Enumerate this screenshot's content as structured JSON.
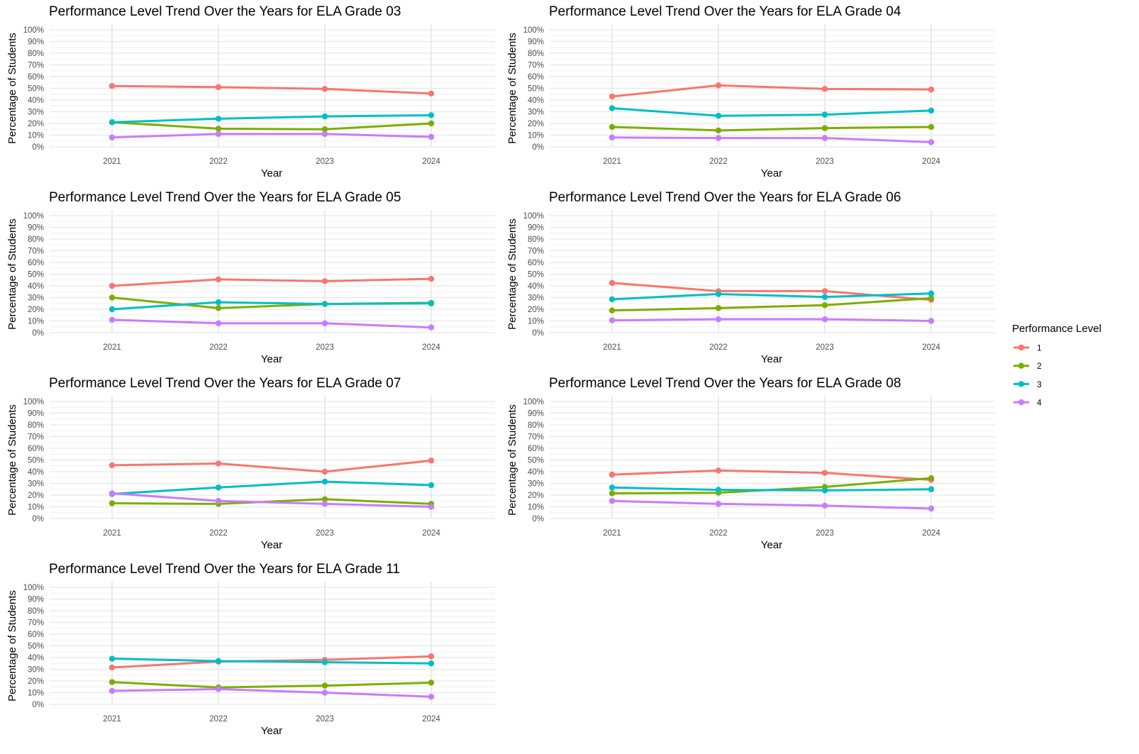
{
  "legend": {
    "title": "Performance Level",
    "entries": [
      {
        "label": "1",
        "color": "#F8766D"
      },
      {
        "label": "2",
        "color": "#7CAE00"
      },
      {
        "label": "3",
        "color": "#00BFC4"
      },
      {
        "label": "4",
        "color": "#C77CFF"
      }
    ]
  },
  "chart_data": [
    {
      "type": "line",
      "title": "Performance Level Trend Over the Years for ELA Grade 03",
      "xlabel": "Year",
      "ylabel": "Percentage of Students",
      "x": [
        "2021",
        "2022",
        "2023",
        "2024"
      ],
      "yticks": [
        "0%",
        "10%",
        "20%",
        "30%",
        "40%",
        "50%",
        "60%",
        "70%",
        "80%",
        "90%",
        "100%"
      ],
      "ylim": [
        0,
        100
      ],
      "grid": true,
      "legend": "right",
      "series": [
        {
          "name": "1",
          "values": [
            52,
            51,
            49.5,
            45.5
          ]
        },
        {
          "name": "2",
          "values": [
            21,
            15.5,
            15,
            20
          ]
        },
        {
          "name": "3",
          "values": [
            21,
            24,
            26,
            27
          ]
        },
        {
          "name": "4",
          "values": [
            8,
            11,
            11,
            8.5
          ]
        }
      ]
    },
    {
      "type": "line",
      "title": "Performance Level Trend Over the Years for ELA Grade 04",
      "xlabel": "Year",
      "ylabel": "Percentage of Students",
      "x": [
        "2021",
        "2022",
        "2023",
        "2024"
      ],
      "yticks": [
        "0%",
        "10%",
        "20%",
        "30%",
        "40%",
        "50%",
        "60%",
        "70%",
        "80%",
        "90%",
        "100%"
      ],
      "ylim": [
        0,
        100
      ],
      "grid": true,
      "legend": "right",
      "series": [
        {
          "name": "1",
          "values": [
            43,
            52.5,
            49.5,
            49
          ]
        },
        {
          "name": "2",
          "values": [
            17,
            14,
            16,
            17
          ]
        },
        {
          "name": "3",
          "values": [
            33,
            26.5,
            27.5,
            31
          ]
        },
        {
          "name": "4",
          "values": [
            8,
            7.5,
            7.5,
            4
          ]
        }
      ]
    },
    {
      "type": "line",
      "title": "Performance Level Trend Over the Years for ELA Grade 05",
      "xlabel": "Year",
      "ylabel": "Percentage of Students",
      "x": [
        "2021",
        "2022",
        "2023",
        "2024"
      ],
      "yticks": [
        "0%",
        "10%",
        "20%",
        "30%",
        "40%",
        "50%",
        "60%",
        "70%",
        "80%",
        "90%",
        "100%"
      ],
      "ylim": [
        0,
        100
      ],
      "grid": true,
      "legend": "right",
      "series": [
        {
          "name": "1",
          "values": [
            40,
            45.5,
            44,
            46
          ]
        },
        {
          "name": "2",
          "values": [
            30,
            21,
            24.5,
            25.5
          ]
        },
        {
          "name": "3",
          "values": [
            20,
            26,
            24.5,
            25
          ]
        },
        {
          "name": "4",
          "values": [
            11,
            8,
            8,
            4.5
          ]
        }
      ]
    },
    {
      "type": "line",
      "title": "Performance Level Trend Over the Years for ELA Grade 06",
      "xlabel": "Year",
      "ylabel": "Percentage of Students",
      "x": [
        "2021",
        "2022",
        "2023",
        "2024"
      ],
      "yticks": [
        "0%",
        "10%",
        "20%",
        "30%",
        "40%",
        "50%",
        "60%",
        "70%",
        "80%",
        "90%",
        "100%"
      ],
      "ylim": [
        0,
        100
      ],
      "grid": true,
      "legend": "right",
      "series": [
        {
          "name": "1",
          "values": [
            42.5,
            35.5,
            35.5,
            28
          ]
        },
        {
          "name": "2",
          "values": [
            19,
            21,
            23.5,
            29.5
          ]
        },
        {
          "name": "3",
          "values": [
            28.5,
            33,
            30.5,
            33.5
          ]
        },
        {
          "name": "4",
          "values": [
            10.5,
            11.5,
            11.5,
            10
          ]
        }
      ]
    },
    {
      "type": "line",
      "title": "Performance Level Trend Over the Years for ELA Grade 07",
      "xlabel": "Year",
      "ylabel": "Percentage of Students",
      "x": [
        "2021",
        "2022",
        "2023",
        "2024"
      ],
      "yticks": [
        "0%",
        "10%",
        "20%",
        "30%",
        "40%",
        "50%",
        "60%",
        "70%",
        "80%",
        "90%",
        "100%"
      ],
      "ylim": [
        0,
        100
      ],
      "grid": true,
      "legend": "right",
      "series": [
        {
          "name": "1",
          "values": [
            45.5,
            47,
            40,
            49.5
          ]
        },
        {
          "name": "2",
          "values": [
            13,
            12.5,
            16.5,
            12.5
          ]
        },
        {
          "name": "3",
          "values": [
            21,
            26.5,
            31.5,
            28.5
          ]
        },
        {
          "name": "4",
          "values": [
            21.5,
            15,
            12.5,
            10
          ]
        }
      ]
    },
    {
      "type": "line",
      "title": "Performance Level Trend Over the Years for ELA Grade 08",
      "xlabel": "Year",
      "ylabel": "Percentage of Students",
      "x": [
        "2021",
        "2022",
        "2023",
        "2024"
      ],
      "yticks": [
        "0%",
        "10%",
        "20%",
        "30%",
        "40%",
        "50%",
        "60%",
        "70%",
        "80%",
        "90%",
        "100%"
      ],
      "ylim": [
        0,
        100
      ],
      "grid": true,
      "legend": "right",
      "series": [
        {
          "name": "1",
          "values": [
            37.5,
            41,
            39,
            33
          ]
        },
        {
          "name": "2",
          "values": [
            21.5,
            22,
            27,
            34.5
          ]
        },
        {
          "name": "3",
          "values": [
            26.5,
            24.5,
            24,
            25
          ]
        },
        {
          "name": "4",
          "values": [
            15,
            12.5,
            11,
            8.5
          ]
        }
      ]
    },
    {
      "type": "line",
      "title": "Performance Level Trend Over the Years for ELA Grade 11",
      "xlabel": "Year",
      "ylabel": "Percentage of Students",
      "x": [
        "2021",
        "2022",
        "2023",
        "2024"
      ],
      "yticks": [
        "0%",
        "10%",
        "20%",
        "30%",
        "40%",
        "50%",
        "60%",
        "70%",
        "80%",
        "90%",
        "100%"
      ],
      "ylim": [
        0,
        100
      ],
      "grid": true,
      "legend": "right",
      "series": [
        {
          "name": "1",
          "values": [
            31.5,
            36.5,
            38,
            41
          ]
        },
        {
          "name": "2",
          "values": [
            19,
            14.5,
            16,
            18.5
          ]
        },
        {
          "name": "3",
          "values": [
            39,
            37,
            36,
            35
          ]
        },
        {
          "name": "4",
          "values": [
            11.5,
            13,
            10,
            6.5
          ]
        }
      ]
    }
  ]
}
